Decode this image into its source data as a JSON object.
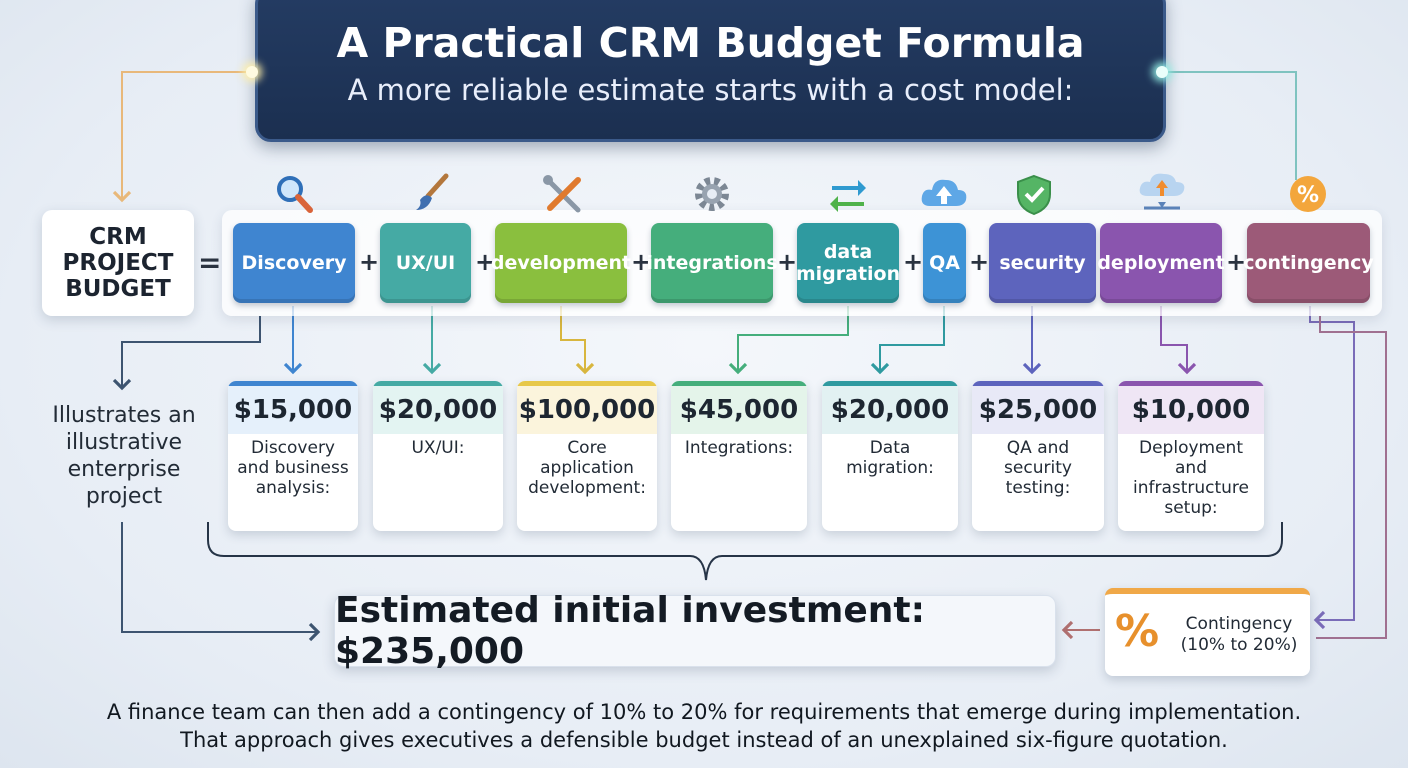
{
  "title": "A Practical CRM Budget Formula",
  "subtitle": "A more reliable estimate starts with a cost model:",
  "lhs_line1": "CRM",
  "lhs_line2": "PROJECT",
  "lhs_line3": "BUDGET",
  "equals": "=",
  "plus": "+",
  "terms": [
    {
      "label": "Discovery",
      "color": "#3f85d0",
      "icon": "magnifier-icon"
    },
    {
      "label": "UX/UI",
      "color": "#45aaa4",
      "icon": "paintbrush-icon"
    },
    {
      "label": "development",
      "color": "#8abf3e",
      "icon": "tools-icon"
    },
    {
      "label": "integrations",
      "color": "#45ae7c",
      "icon": "gear-icon"
    },
    {
      "label_line1": "data",
      "label_line2": "migration",
      "color": "#2f9aa0",
      "icon": "sync-arrows-icon"
    },
    {
      "label": "QA",
      "color": "#3d93d6",
      "icon": "cloud-upload-icon"
    },
    {
      "label": "security",
      "color": "#5d64bd",
      "icon": "shield-check-icon"
    },
    {
      "label": "deployment",
      "color": "#8a55ae",
      "icon": "cloud-deploy-icon"
    },
    {
      "label": "contingency",
      "color": "#9c5a78",
      "icon": "percent-icon"
    }
  ],
  "costs": [
    {
      "amount": "$15,000",
      "desc": "Discovery and business analysis:",
      "accent": "#3f85d0"
    },
    {
      "amount": "$20,000",
      "desc": "UX/UI:",
      "accent": "#45aaa4"
    },
    {
      "amount": "$100,000",
      "desc": "Core application development:",
      "accent": "#e7c84a"
    },
    {
      "amount": "$45,000",
      "desc": "Integrations:",
      "accent": "#45ae7c"
    },
    {
      "amount": "$20,000",
      "desc": "Data migration:",
      "accent": "#2f9aa0"
    },
    {
      "amount": "$25,000",
      "desc": "QA and security testing:",
      "accent": "#5d64bd"
    },
    {
      "amount": "$10,000",
      "desc": "Deployment and infrastructure setup:",
      "accent": "#8a55ae"
    }
  ],
  "side_note": "Illustrates an illustrative enterprise project",
  "total": "Estimated initial investment: $235,000",
  "contingency_symbol": "%",
  "contingency_text": "Contingency (10% to 20%)",
  "footer_line1": "A finance team can then add a contingency of 10% to 20% for requirements that emerge during implementation.",
  "footer_line2": "That approach gives executives a defensible budget instead of an unexplained six-figure quotation."
}
